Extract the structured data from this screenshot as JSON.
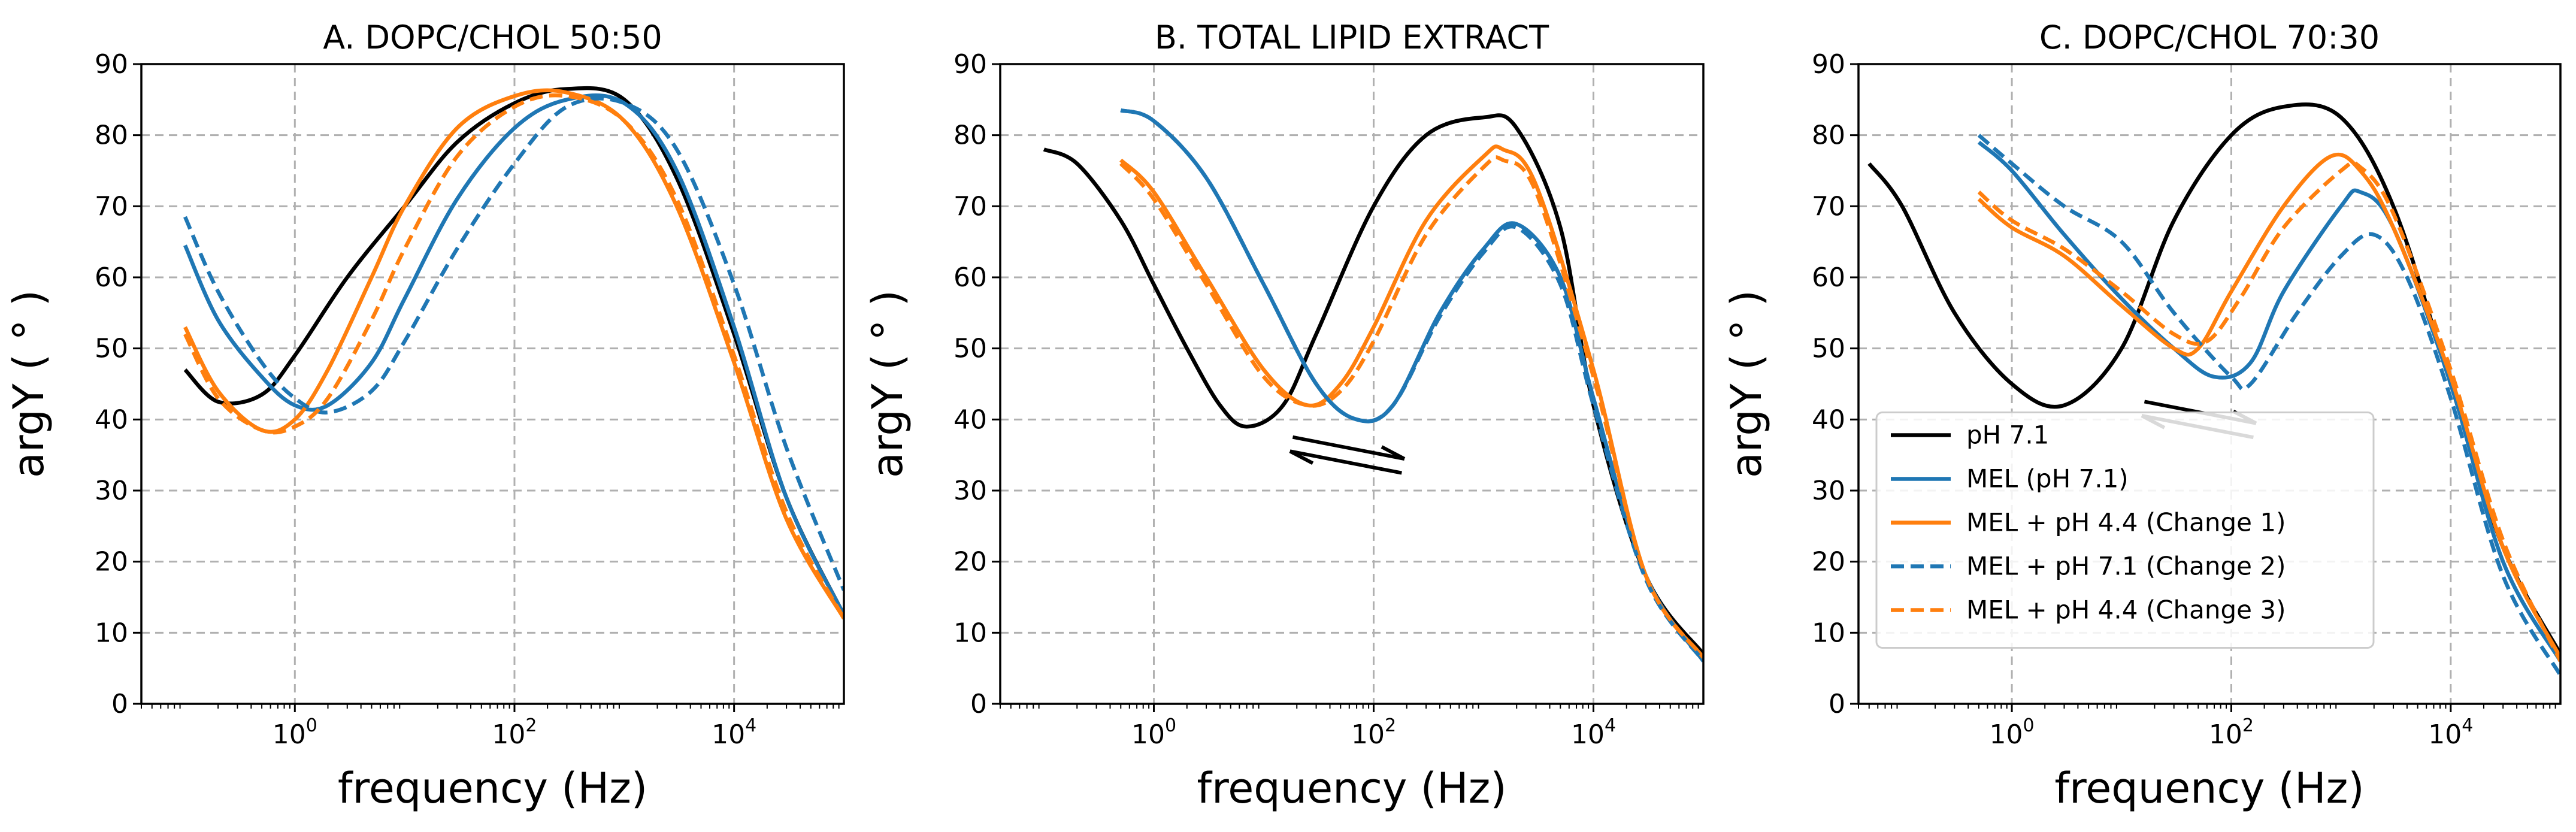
{
  "colors": {
    "black": "#000000",
    "blue": "#1f77b4",
    "orange": "#ff7f0e",
    "grid": "#b0b0b0"
  },
  "legend": [
    {
      "label": "pH 7.1",
      "color": "black",
      "dash": false
    },
    {
      "label": "MEL (pH 7.1)",
      "color": "blue",
      "dash": false
    },
    {
      "label": "MEL + pH 4.4 (Change 1)",
      "color": "orange",
      "dash": false
    },
    {
      "label": "MEL + pH 7.1 (Change 2)",
      "color": "blue",
      "dash": true
    },
    {
      "label": "MEL + pH 4.4 (Change 3)",
      "color": "orange",
      "dash": true
    }
  ],
  "chart_data": [
    {
      "type": "line",
      "title": "A. DOPC/CHOL 50:50",
      "xlabel": "frequency (Hz)",
      "ylabel": "argY ( ° )",
      "xscale": "log",
      "xlim": [
        0.04,
        100000
      ],
      "ylim": [
        0,
        90
      ],
      "yticks": [
        0,
        10,
        20,
        30,
        40,
        50,
        60,
        70,
        80,
        90
      ],
      "xticks": [
        {
          "base": "10",
          "exp": "0",
          "value": 1
        },
        {
          "base": "10",
          "exp": "2",
          "value": 100
        },
        {
          "base": "10",
          "exp": "4",
          "value": 10000
        }
      ],
      "grid": true,
      "series": [
        {
          "name": "pH 7.1",
          "color": "black",
          "dash": false,
          "points": [
            [
              0.1,
              47
            ],
            [
              0.2,
              42.5
            ],
            [
              0.5,
              43.5
            ],
            [
              1,
              49
            ],
            [
              3,
              60
            ],
            [
              10,
              70
            ],
            [
              30,
              79
            ],
            [
              100,
              84.5
            ],
            [
              300,
              86.5
            ],
            [
              1000,
              85
            ],
            [
              3000,
              74
            ],
            [
              10000,
              52
            ],
            [
              30000,
              29
            ],
            [
              100000,
              12.5
            ]
          ]
        },
        {
          "name": "MEL (pH 7.1)",
          "color": "blue",
          "dash": false,
          "points": [
            [
              0.1,
              64.5
            ],
            [
              0.2,
              54
            ],
            [
              0.5,
              46
            ],
            [
              1,
              42
            ],
            [
              2,
              42
            ],
            [
              5,
              48
            ],
            [
              10,
              57
            ],
            [
              30,
              71
            ],
            [
              100,
              81
            ],
            [
              300,
              85
            ],
            [
              1000,
              84.5
            ],
            [
              3000,
              75
            ],
            [
              10000,
              53
            ],
            [
              30000,
              29
            ],
            [
              100000,
              12.5
            ]
          ]
        },
        {
          "name": "MEL + pH 4.4 (Change 1)",
          "color": "orange",
          "dash": false,
          "points": [
            [
              0.1,
              53
            ],
            [
              0.2,
              44
            ],
            [
              0.5,
              38.5
            ],
            [
              1,
              40
            ],
            [
              2,
              47
            ],
            [
              5,
              60
            ],
            [
              10,
              70
            ],
            [
              30,
              81
            ],
            [
              100,
              85.5
            ],
            [
              300,
              86
            ],
            [
              1000,
              82
            ],
            [
              3000,
              70
            ],
            [
              10000,
              48
            ],
            [
              30000,
              26
            ],
            [
              100000,
              12
            ]
          ]
        },
        {
          "name": "MEL + pH 7.1 (Change 2)",
          "color": "blue",
          "dash": true,
          "points": [
            [
              0.1,
              68.5
            ],
            [
              0.2,
              58
            ],
            [
              0.5,
              48
            ],
            [
              1,
              43
            ],
            [
              2,
              41
            ],
            [
              5,
              44
            ],
            [
              10,
              51
            ],
            [
              30,
              64
            ],
            [
              100,
              76
            ],
            [
              300,
              84
            ],
            [
              1000,
              84.5
            ],
            [
              3000,
              78
            ],
            [
              10000,
              59
            ],
            [
              30000,
              36
            ],
            [
              100000,
              16
            ]
          ]
        },
        {
          "name": "MEL + pH 4.4 (Change 3)",
          "color": "orange",
          "dash": true,
          "points": [
            [
              0.1,
              52
            ],
            [
              0.2,
              43
            ],
            [
              0.5,
              38.5
            ],
            [
              1,
              39
            ],
            [
              2,
              43
            ],
            [
              5,
              54
            ],
            [
              10,
              64
            ],
            [
              30,
              77
            ],
            [
              100,
              84
            ],
            [
              300,
              85.5
            ],
            [
              1000,
              82
            ],
            [
              3000,
              71
            ],
            [
              10000,
              49
            ],
            [
              30000,
              27
            ],
            [
              100000,
              12
            ]
          ]
        }
      ]
    },
    {
      "type": "line",
      "title": "B. TOTAL LIPID EXTRACT",
      "xlabel": "frequency (Hz)",
      "ylabel": "argY ( ° )",
      "xscale": "log",
      "xlim": [
        0.04,
        100000
      ],
      "ylim": [
        0,
        90
      ],
      "yticks": [
        0,
        10,
        20,
        30,
        40,
        50,
        60,
        70,
        80,
        90
      ],
      "xticks": [
        {
          "base": "10",
          "exp": "0",
          "value": 1
        },
        {
          "base": "10",
          "exp": "2",
          "value": 100
        },
        {
          "base": "10",
          "exp": "4",
          "value": 10000
        }
      ],
      "grid": true,
      "series": [
        {
          "name": "pH 7.1",
          "color": "black",
          "dash": false,
          "points": [
            [
              0.1,
              78
            ],
            [
              0.2,
              76
            ],
            [
              0.5,
              68
            ],
            [
              1,
              59
            ],
            [
              2,
              50
            ],
            [
              4,
              42
            ],
            [
              7,
              39
            ],
            [
              15,
              42
            ],
            [
              30,
              52
            ],
            [
              100,
              70
            ],
            [
              300,
              80
            ],
            [
              1000,
              82.5
            ],
            [
              2000,
              81
            ],
            [
              5000,
              67
            ],
            [
              10000,
              42
            ],
            [
              30000,
              18
            ],
            [
              100000,
              7
            ]
          ]
        },
        {
          "name": "MEL (pH 7.1)",
          "color": "blue",
          "dash": false,
          "points": [
            [
              0.5,
              83.5
            ],
            [
              1,
              82
            ],
            [
              3,
              74
            ],
            [
              10,
              59
            ],
            [
              30,
              45
            ],
            [
              70,
              40
            ],
            [
              150,
              42
            ],
            [
              400,
              55
            ],
            [
              1000,
              64
            ],
            [
              2000,
              67.5
            ],
            [
              5000,
              60
            ],
            [
              10000,
              43
            ],
            [
              30000,
              18
            ],
            [
              100000,
              6
            ]
          ]
        },
        {
          "name": "MEL + pH 4.4 (Change 1)",
          "color": "orange",
          "dash": false,
          "points": [
            [
              0.5,
              76.5
            ],
            [
              1,
              72
            ],
            [
              3,
              60
            ],
            [
              10,
              47
            ],
            [
              25,
              42
            ],
            [
              50,
              45
            ],
            [
              100,
              53
            ],
            [
              300,
              68
            ],
            [
              1000,
              77
            ],
            [
              1500,
              78
            ],
            [
              3000,
              73
            ],
            [
              10000,
              47
            ],
            [
              30000,
              18
            ],
            [
              100000,
              6.5
            ]
          ]
        },
        {
          "name": "MEL + pH 7.1 (Change 2)",
          "color": "blue",
          "dash": true,
          "points": [
            [
              0.5,
              83.5
            ],
            [
              1,
              82
            ],
            [
              3,
              74
            ],
            [
              10,
              59
            ],
            [
              30,
              45
            ],
            [
              70,
              40
            ],
            [
              150,
              42
            ],
            [
              400,
              54.5
            ],
            [
              1000,
              63.5
            ],
            [
              2000,
              67
            ],
            [
              5000,
              59
            ],
            [
              10000,
              42
            ],
            [
              30000,
              17.5
            ],
            [
              100000,
              6
            ]
          ]
        },
        {
          "name": "MEL + pH 4.4 (Change 3)",
          "color": "orange",
          "dash": true,
          "points": [
            [
              0.5,
              76
            ],
            [
              1,
              71
            ],
            [
              3,
              59
            ],
            [
              10,
              46
            ],
            [
              25,
              42
            ],
            [
              50,
              44
            ],
            [
              100,
              51
            ],
            [
              300,
              66
            ],
            [
              1000,
              75.5
            ],
            [
              1500,
              76.5
            ],
            [
              3000,
              72
            ],
            [
              10000,
              46
            ],
            [
              30000,
              18
            ],
            [
              100000,
              6.5
            ]
          ]
        }
      ],
      "annotations": [
        {
          "type": "equilibrium-arrows"
        }
      ]
    },
    {
      "type": "line",
      "title": "C. DOPC/CHOL 70:30",
      "xlabel": "frequency (Hz)",
      "ylabel": "argY ( ° )",
      "xscale": "log",
      "xlim": [
        0.04,
        100000
      ],
      "ylim": [
        0,
        90
      ],
      "yticks": [
        0,
        10,
        20,
        30,
        40,
        50,
        60,
        70,
        80,
        90
      ],
      "xticks": [
        {
          "base": "10",
          "exp": "0",
          "value": 1
        },
        {
          "base": "10",
          "exp": "2",
          "value": 100
        },
        {
          "base": "10",
          "exp": "4",
          "value": 10000
        }
      ],
      "grid": true,
      "legend_position": "lower-left",
      "series": [
        {
          "name": "pH 7.1",
          "color": "black",
          "dash": false,
          "points": [
            [
              0.05,
              76
            ],
            [
              0.1,
              70
            ],
            [
              0.3,
              55
            ],
            [
              1,
              45
            ],
            [
              3,
              42
            ],
            [
              10,
              50
            ],
            [
              30,
              68
            ],
            [
              100,
              80
            ],
            [
              300,
              84
            ],
            [
              1000,
              82.5
            ],
            [
              3000,
              70
            ],
            [
              10000,
              45
            ],
            [
              30000,
              22
            ],
            [
              100000,
              7
            ]
          ]
        },
        {
          "name": "MEL (pH 7.1)",
          "color": "blue",
          "dash": false,
          "points": [
            [
              0.5,
              79
            ],
            [
              1,
              75
            ],
            [
              3,
              66
            ],
            [
              10,
              57
            ],
            [
              30,
              50
            ],
            [
              70,
              46
            ],
            [
              150,
              48
            ],
            [
              300,
              58
            ],
            [
              1000,
              70
            ],
            [
              1500,
              72
            ],
            [
              3000,
              67
            ],
            [
              10000,
              45
            ],
            [
              30000,
              20
            ],
            [
              100000,
              6
            ]
          ]
        },
        {
          "name": "MEL + pH 4.4 (Change 1)",
          "color": "orange",
          "dash": false,
          "points": [
            [
              0.5,
              71
            ],
            [
              1,
              67
            ],
            [
              3,
              63
            ],
            [
              10,
              56
            ],
            [
              30,
              50
            ],
            [
              50,
              50
            ],
            [
              100,
              58
            ],
            [
              300,
              70
            ],
            [
              800,
              77
            ],
            [
              1500,
              75
            ],
            [
              3000,
              67
            ],
            [
              10000,
              46
            ],
            [
              30000,
              22
            ],
            [
              100000,
              6.5
            ]
          ]
        },
        {
          "name": "MEL + pH 7.1 (Change 2)",
          "color": "blue",
          "dash": true,
          "points": [
            [
              0.5,
              80
            ],
            [
              1,
              76
            ],
            [
              3,
              70
            ],
            [
              10,
              65
            ],
            [
              30,
              55
            ],
            [
              100,
              46
            ],
            [
              150,
              45
            ],
            [
              400,
              55
            ],
            [
              1000,
              63
            ],
            [
              2000,
              66
            ],
            [
              4000,
              60
            ],
            [
              10000,
              43
            ],
            [
              30000,
              18
            ],
            [
              100000,
              4
            ]
          ]
        },
        {
          "name": "MEL + pH 4.4 (Change 3)",
          "color": "orange",
          "dash": true,
          "points": [
            [
              0.5,
              72
            ],
            [
              1,
              68
            ],
            [
              3,
              64
            ],
            [
              10,
              58
            ],
            [
              30,
              52
            ],
            [
              60,
              51
            ],
            [
              120,
              57
            ],
            [
              300,
              67
            ],
            [
              1000,
              75
            ],
            [
              1500,
              75.5
            ],
            [
              3000,
              69
            ],
            [
              10000,
              47
            ],
            [
              30000,
              23
            ],
            [
              100000,
              6
            ]
          ]
        }
      ],
      "annotations": [
        {
          "type": "equilibrium-arrows"
        }
      ]
    }
  ]
}
